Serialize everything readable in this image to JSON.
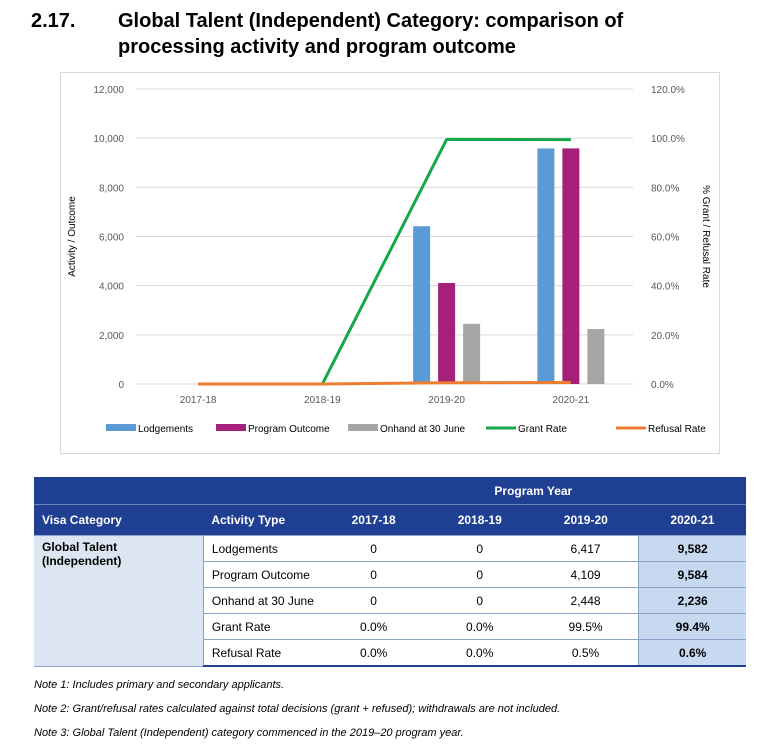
{
  "heading": {
    "number": "2.17.",
    "title": "Global Talent (Independent) Category: comparison of processing activity and program outcome"
  },
  "chart_data": {
    "type": "bar",
    "categories": [
      "2017-18",
      "2018-19",
      "2019-20",
      "2020-21"
    ],
    "series": [
      {
        "name": "Lodgements",
        "type": "bar",
        "axis": "left",
        "color": "#5b9bd5",
        "values": [
          0,
          0,
          6417,
          9582
        ]
      },
      {
        "name": "Program Outcome",
        "type": "bar",
        "axis": "left",
        "color": "#a5207a",
        "values": [
          0,
          0,
          4109,
          9584
        ]
      },
      {
        "name": "Onhand at 30 June",
        "type": "bar",
        "axis": "left",
        "color": "#a5a5a5",
        "values": [
          0,
          0,
          2448,
          2236
        ]
      },
      {
        "name": "Grant Rate",
        "type": "line",
        "axis": "right",
        "color": "#14a84a",
        "values": [
          0.0,
          0.0,
          99.5,
          99.4
        ]
      },
      {
        "name": "Refusal Rate",
        "type": "line",
        "axis": "right",
        "color": "#ed7d31",
        "values": [
          0.0,
          0.0,
          0.5,
          0.6
        ]
      }
    ],
    "ylabel": "Activity / Outcome",
    "y2label": "% Grant / Refusal Rate",
    "ylim": [
      0,
      12000
    ],
    "y2lim": [
      0,
      120
    ],
    "yticks": [
      "0",
      "2,000",
      "4,000",
      "6,000",
      "8,000",
      "10,000",
      "12,000"
    ],
    "y2ticks": [
      "0.0%",
      "20.0%",
      "40.0%",
      "60.0%",
      "80.0%",
      "100.0%",
      "120.0%"
    ],
    "grid": true,
    "legend": "bottom"
  },
  "table": {
    "group_header": "Program Year",
    "columns": [
      "Visa Category",
      "Activity Type",
      "2017-18",
      "2018-19",
      "2019-20",
      "2020-21"
    ],
    "category": "Global Talent (Independent)",
    "rows": [
      {
        "activity": "Lodgements",
        "values": [
          "0",
          "0",
          "6,417",
          "9,582"
        ]
      },
      {
        "activity": "Program Outcome",
        "values": [
          "0",
          "0",
          "4,109",
          "9,584"
        ]
      },
      {
        "activity": "Onhand at 30 June",
        "values": [
          "0",
          "0",
          "2,448",
          "2,236"
        ]
      },
      {
        "activity": "Grant Rate",
        "values": [
          "0.0%",
          "0.0%",
          "99.5%",
          "99.4%"
        ]
      },
      {
        "activity": "Refusal Rate",
        "values": [
          "0.0%",
          "0.0%",
          "0.5%",
          "0.6%"
        ]
      }
    ]
  },
  "notes": [
    "Note 1: Includes primary and secondary applicants.",
    "Note 2: Grant/refusal rates calculated against total decisions (grant + refused); withdrawals are not included.",
    "Note 3: Global Talent (Independent) category commenced in the 2019–20 program year."
  ]
}
